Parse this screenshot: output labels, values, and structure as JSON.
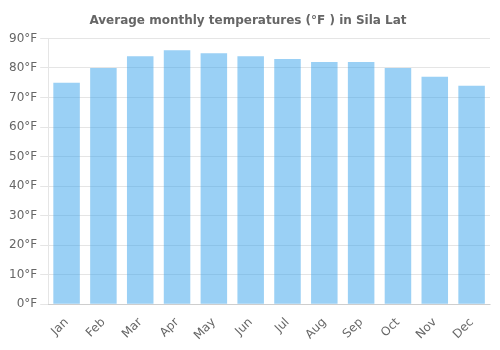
{
  "chart_data": {
    "type": "bar",
    "title": "Average monthly temperatures (°F ) in Sila Lat",
    "categories": [
      "Jan",
      "Feb",
      "Mar",
      "Apr",
      "May",
      "Jun",
      "Jul",
      "Aug",
      "Sep",
      "Oct",
      "Nov",
      "Dec"
    ],
    "values": [
      75,
      80,
      84,
      86,
      85,
      84,
      83,
      82,
      82,
      80,
      77,
      74
    ],
    "ylim": [
      0,
      90
    ],
    "yticks": [
      {
        "value": 0,
        "label": "0°F"
      },
      {
        "value": 10,
        "label": "10°F"
      },
      {
        "value": 20,
        "label": "20°F"
      },
      {
        "value": 30,
        "label": "30°F"
      },
      {
        "value": 40,
        "label": "40°F"
      },
      {
        "value": 50,
        "label": "50°F"
      },
      {
        "value": 60,
        "label": "60°F"
      },
      {
        "value": 70,
        "label": "70°F"
      },
      {
        "value": 80,
        "label": "80°F"
      },
      {
        "value": 90,
        "label": "90°F"
      }
    ],
    "grid": true
  }
}
